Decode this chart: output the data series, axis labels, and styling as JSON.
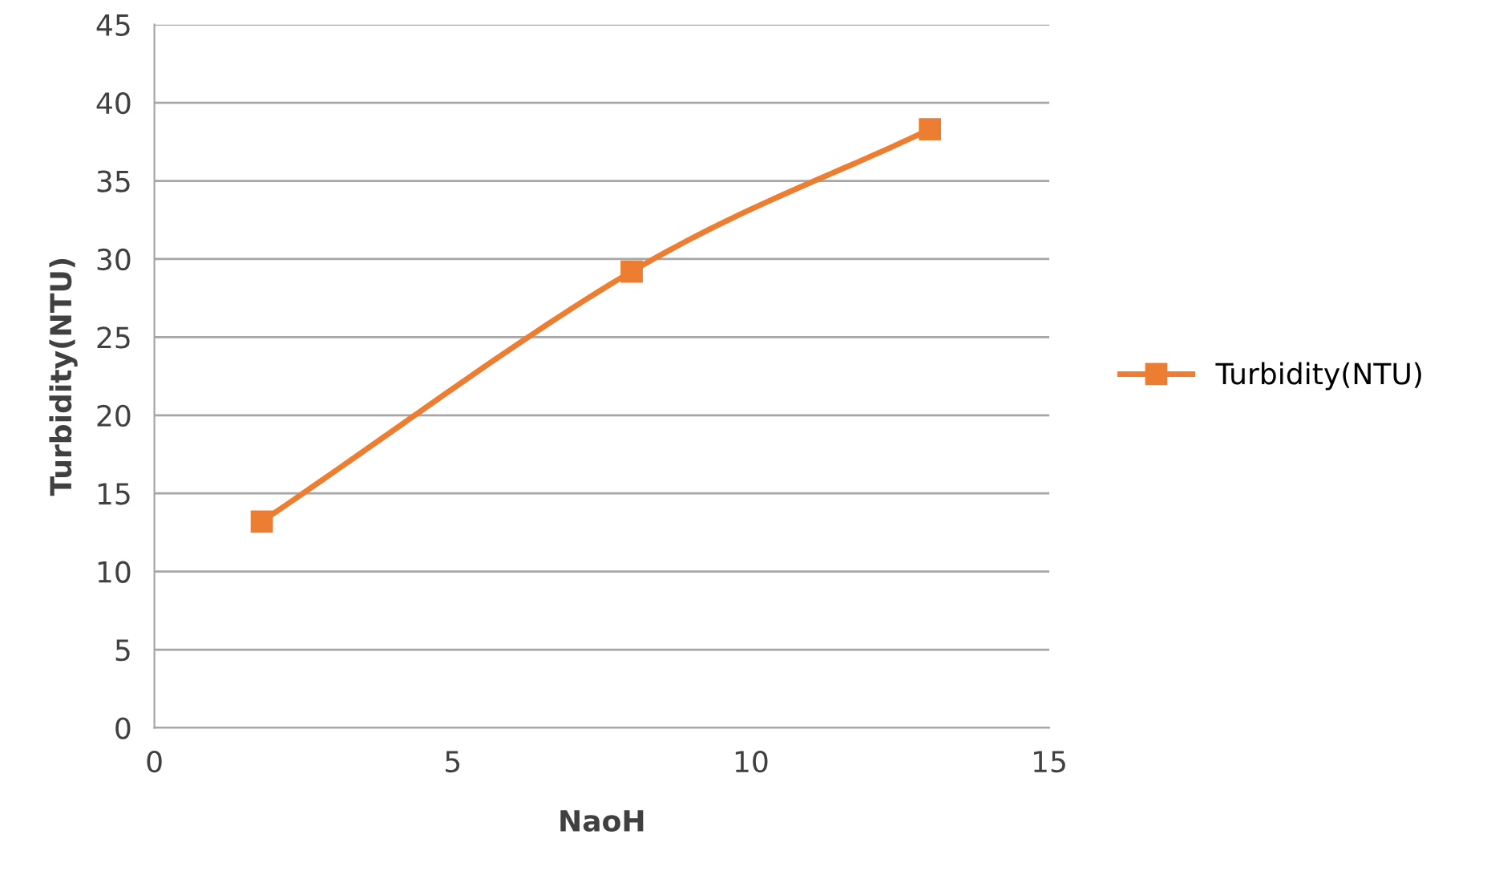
{
  "chart_data": {
    "type": "line",
    "xlabel": "NaoH",
    "ylabel": "Turbidity(NTU)",
    "x": [
      1.8,
      8,
      13
    ],
    "series": [
      {
        "name": "Turbidity(NTU)",
        "color": "#ed7d31",
        "values": [
          13.2,
          29.2,
          38.3
        ]
      }
    ],
    "xlim": [
      0,
      15
    ],
    "xticks": [
      0,
      5,
      10,
      15
    ],
    "ylim": [
      0,
      45
    ],
    "yticks": [
      0,
      5,
      10,
      15,
      20,
      25,
      30,
      35,
      40,
      45
    ],
    "grid": "y",
    "legend": "right",
    "marker": "square",
    "line_style": "solid"
  }
}
